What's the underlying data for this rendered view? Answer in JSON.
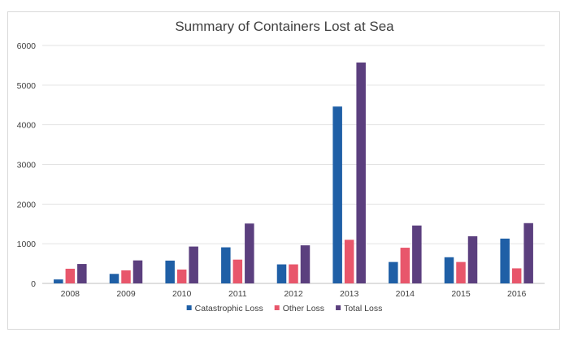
{
  "chart_data": {
    "type": "bar",
    "title": "Summary of Containers Lost at Sea",
    "xlabel": "",
    "ylabel": "",
    "categories": [
      "2008",
      "2009",
      "2010",
      "2011",
      "2012",
      "2013",
      "2014",
      "2015",
      "2016"
    ],
    "series": [
      {
        "name": "Catastrophic Loss",
        "color": "#1f5fa6",
        "values": [
          100,
          240,
          575,
          910,
          480,
          4460,
          540,
          660,
          1130
        ]
      },
      {
        "name": "Other Loss",
        "color": "#e8566b",
        "values": [
          370,
          330,
          350,
          600,
          480,
          1100,
          900,
          540,
          380
        ]
      },
      {
        "name": "Total Loss",
        "color": "#5b3f7e",
        "values": [
          490,
          580,
          930,
          1510,
          960,
          5570,
          1460,
          1190,
          1520
        ]
      }
    ],
    "ylim": [
      0,
      6000
    ],
    "yticks": [
      0,
      1000,
      2000,
      3000,
      4000,
      5000,
      6000
    ],
    "grid": true,
    "legend_position": "bottom"
  }
}
